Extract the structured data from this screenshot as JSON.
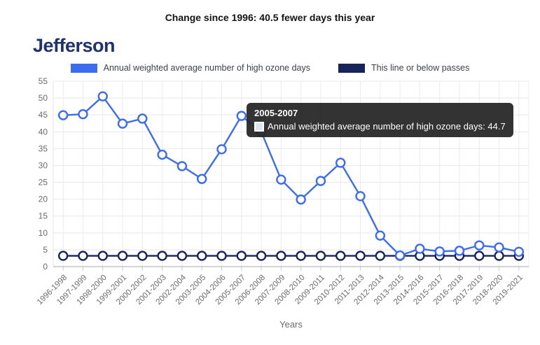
{
  "header": {
    "change_summary": "Change since 1996: 40.5 fewer days this year"
  },
  "page_title": "Jefferson",
  "legend": {
    "items": [
      {
        "label": "Annual weighted average number of high ozone days",
        "color": "#3c6cf0"
      },
      {
        "label": "This line or below passes",
        "color": "#16245a"
      }
    ]
  },
  "tooltip": {
    "title": "2005-2007",
    "label": "Annual weighted average number of high ozone days: 44.7"
  },
  "chart_data": {
    "type": "line",
    "title": "Jefferson",
    "xlabel": "Years",
    "ylabel": "",
    "ylim": [
      0,
      55
    ],
    "ytick_step": 5,
    "grid": true,
    "legend_position": "top",
    "categories": [
      "1996-1998",
      "1997-1999",
      "1998-2000",
      "1999-2001",
      "2000-2002",
      "2001-2003",
      "2002-2004",
      "2003-2005",
      "2004-2006",
      "2005-2007",
      "2006-2008",
      "2007-2009",
      "2008-2010",
      "2009-2011",
      "2010-2012",
      "2011-2013",
      "2012-2014",
      "2013-2015",
      "2014-2016",
      "2015-2017",
      "2016-2018",
      "2017-2019",
      "2018-2020",
      "2019-2021"
    ],
    "series": [
      {
        "name": "Annual weighted average number of high ozone days",
        "color": "#3c6cf0",
        "values": [
          44.9,
          45.2,
          50.5,
          42.4,
          43.9,
          33.2,
          29.8,
          26.0,
          34.8,
          44.7,
          40.0,
          25.8,
          19.9,
          25.4,
          30.8,
          20.9,
          9.2,
          3.3,
          5.3,
          4.5,
          4.7,
          6.3,
          5.7,
          4.4
        ]
      },
      {
        "name": "This line or below passes",
        "color": "#16245a",
        "values": [
          3.2,
          3.2,
          3.2,
          3.2,
          3.2,
          3.2,
          3.2,
          3.2,
          3.2,
          3.2,
          3.2,
          3.2,
          3.2,
          3.2,
          3.2,
          3.2,
          3.2,
          3.2,
          3.2,
          3.2,
          3.2,
          3.2,
          3.2,
          3.2
        ]
      }
    ],
    "hovered_point": {
      "category": "2005-2007",
      "series": "Annual weighted average number of high ozone days",
      "value": 44.7
    }
  }
}
